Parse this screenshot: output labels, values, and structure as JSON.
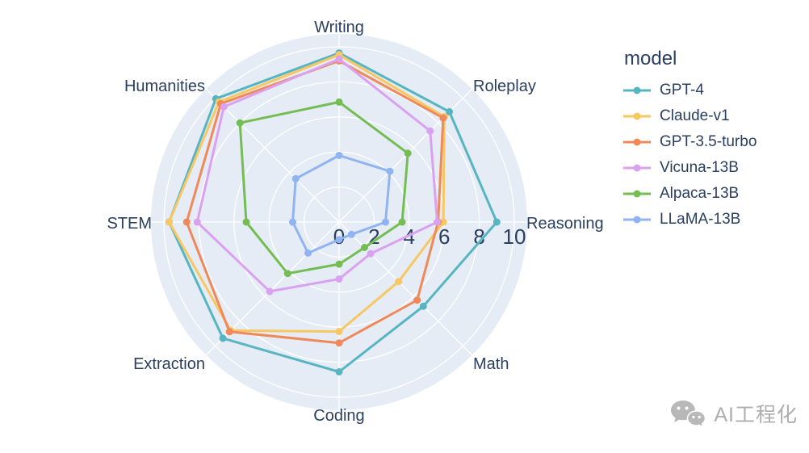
{
  "chart_data": {
    "type": "radar",
    "legend_title": "model",
    "categories": [
      "Writing",
      "Roleplay",
      "Reasoning",
      "Math",
      "Coding",
      "Extraction",
      "STEM",
      "Humanities"
    ],
    "radial_range": [
      0,
      10
    ],
    "radial_ticks": [
      0,
      2,
      4,
      6,
      8,
      10
    ],
    "grid": true,
    "legend_position": "right",
    "series": [
      {
        "name": "GPT-4",
        "color": "#56b5c1",
        "values": [
          9.65,
          8.9,
          9.0,
          6.8,
          8.55,
          9.38,
          9.7,
          9.95
        ]
      },
      {
        "name": "Claude-v1",
        "color": "#f7c761",
        "values": [
          9.55,
          8.5,
          5.95,
          4.8,
          6.25,
          8.75,
          9.7,
          9.7
        ]
      },
      {
        "name": "GPT-3.5-turbo",
        "color": "#f0895a",
        "values": [
          9.2,
          8.4,
          5.65,
          6.3,
          6.9,
          8.85,
          8.7,
          9.55
        ]
      },
      {
        "name": "Vicuna-13B",
        "color": "#d9a1ef",
        "values": [
          9.3,
          7.35,
          5.6,
          2.55,
          3.25,
          5.6,
          8.1,
          9.3
        ]
      },
      {
        "name": "Alpaca-13B",
        "color": "#73bd53",
        "values": [
          6.85,
          5.55,
          3.6,
          2.05,
          2.4,
          4.15,
          5.3,
          8.0
        ]
      },
      {
        "name": "LLaMA-13B",
        "color": "#90b3f1",
        "values": [
          3.8,
          4.1,
          2.65,
          1.0,
          1.0,
          2.5,
          2.65,
          3.5
        ]
      }
    ],
    "colors": {
      "polar_background": "#e5ecf6",
      "grid_line": "#ffffff",
      "text": "#2a3f5f"
    }
  },
  "watermark": {
    "text": "AI工程化",
    "icon": "wechat-icon"
  }
}
